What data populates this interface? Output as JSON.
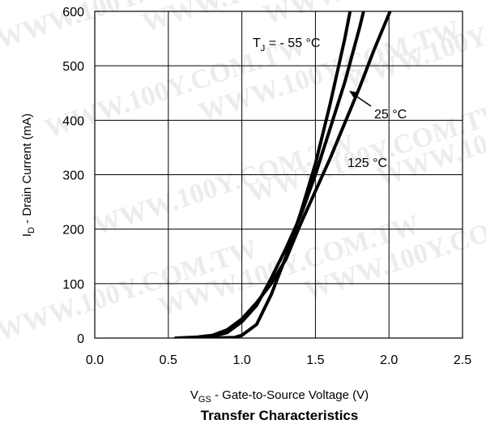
{
  "chart_data": {
    "type": "line",
    "title": "Transfer Characteristics",
    "xlabel": {
      "main": "V",
      "sub": "GS",
      "rest": " - Gate-to-Source Voltage (V)"
    },
    "ylabel": {
      "main": "I",
      "sub": "D",
      "rest": " - Drain Current (mA)"
    },
    "xlim": [
      0.0,
      2.5
    ],
    "ylim": [
      0,
      600
    ],
    "xticks": [
      "0.0",
      "0.5",
      "1.0",
      "1.5",
      "2.0",
      "2.5"
    ],
    "yticks": [
      "0",
      "100",
      "200",
      "300",
      "400",
      "500",
      "600"
    ],
    "grid": true,
    "watermark": "WWW.100Y.COM.TW",
    "annotations": {
      "tj": {
        "main": "T",
        "sub": "J",
        "rest": " = - 55 °C"
      },
      "t25": "25 °C",
      "t125": "125 °C"
    },
    "series": [
      {
        "name": "TJ = -55 °C",
        "x": [
          0.8,
          0.95,
          1.0,
          1.1,
          1.2,
          1.3,
          1.4,
          1.5,
          1.6,
          1.7,
          1.75
        ],
        "y": [
          0,
          1,
          5,
          25,
          80,
          150,
          230,
          320,
          430,
          550,
          620
        ]
      },
      {
        "name": "25 °C",
        "x": [
          0.6,
          0.8,
          0.9,
          1.0,
          1.1,
          1.2,
          1.3,
          1.4,
          1.5,
          1.6,
          1.7,
          1.8,
          1.85
        ],
        "y": [
          0,
          3,
          10,
          30,
          60,
          110,
          165,
          225,
          300,
          385,
          470,
          570,
          625
        ]
      },
      {
        "name": "125 °C",
        "x": [
          0.55,
          0.7,
          0.8,
          0.9,
          1.0,
          1.1,
          1.2,
          1.3,
          1.4,
          1.5,
          1.6,
          1.7,
          1.8,
          1.9,
          2.0,
          2.03
        ],
        "y": [
          0,
          2,
          5,
          15,
          35,
          65,
          100,
          145,
          210,
          270,
          330,
          395,
          460,
          530,
          595,
          615
        ]
      }
    ]
  }
}
